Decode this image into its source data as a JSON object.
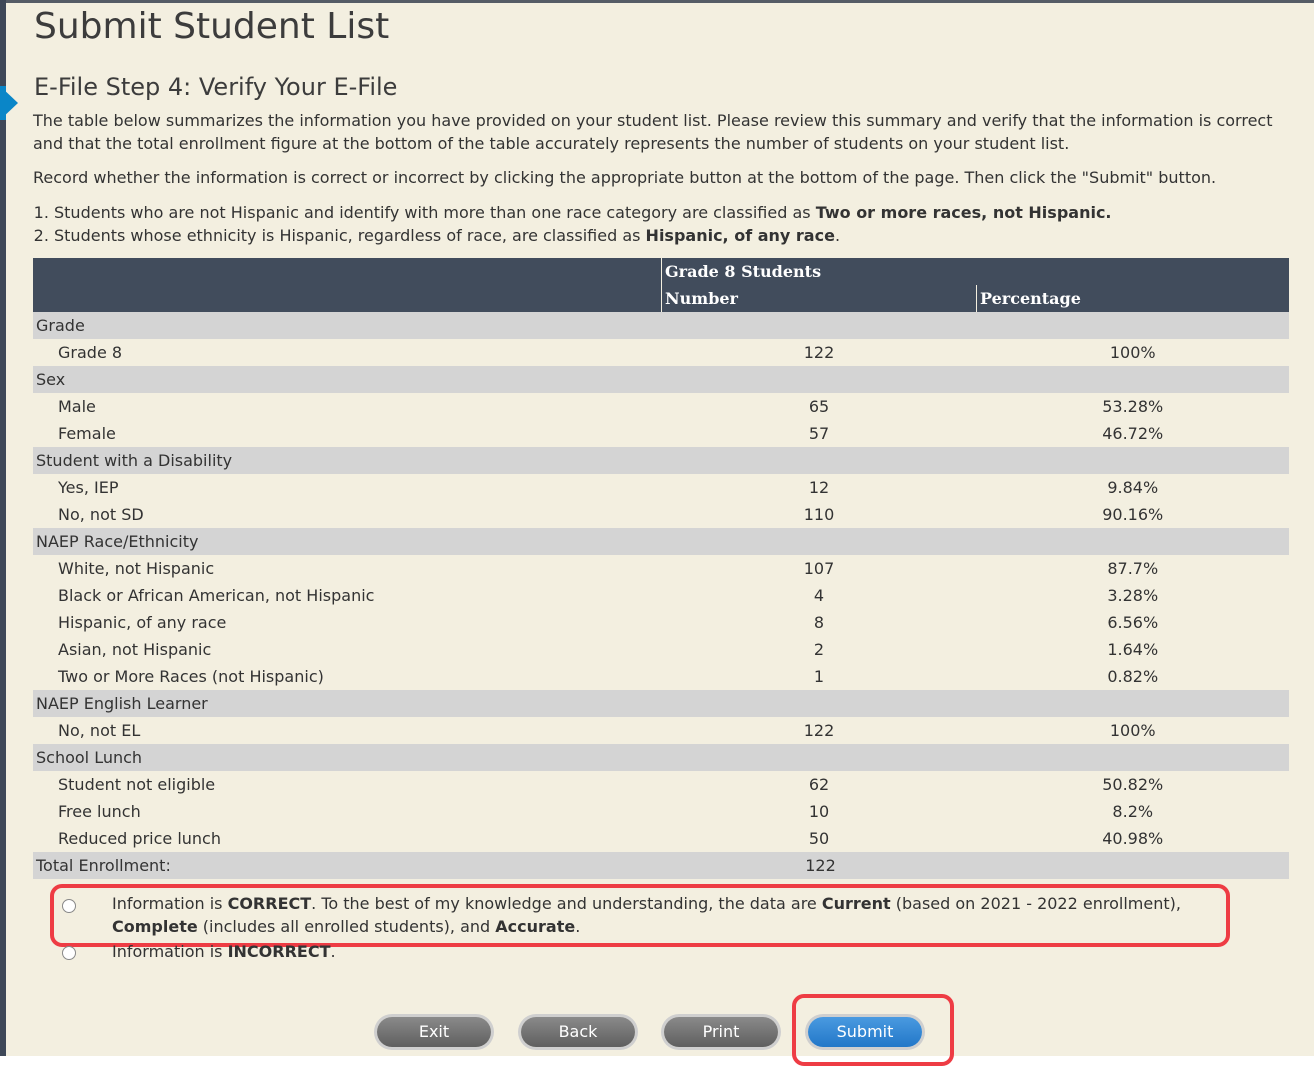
{
  "title": "Submit Student List",
  "step_title": "E-File Step 4: Verify Your E-File",
  "intro": "The table below summarizes the information you have provided on your student list. Please review this summary and verify that the information is correct and that the total enrollment figure at the bottom of the table accurately represents the number of students on your student list.",
  "instruction": "Record whether the information is correct or incorrect by clicking the appropriate button at the bottom of the page. Then click the \"Submit\" button.",
  "notes": [
    {
      "text": "Students who are not Hispanic and identify with more than one race category are classified as ",
      "bold": "Two or more races, not Hispanic."
    },
    {
      "text": "Students whose ethnicity is Hispanic, regardless of race, are classified as ",
      "bold": "Hispanic, of any race",
      "after": "."
    }
  ],
  "table": {
    "group_header": "Grade 8 Students",
    "col_number": "Number",
    "col_percentage": "Percentage",
    "sections": [
      {
        "name": "Grade",
        "rows": [
          [
            "Grade 8",
            "122",
            "100%"
          ]
        ]
      },
      {
        "name": "Sex",
        "rows": [
          [
            "Male",
            "65",
            "53.28%"
          ],
          [
            "Female",
            "57",
            "46.72%"
          ]
        ]
      },
      {
        "name": "Student with a Disability",
        "rows": [
          [
            "Yes, IEP",
            "12",
            "9.84%"
          ],
          [
            "No, not SD",
            "110",
            "90.16%"
          ]
        ]
      },
      {
        "name": "NAEP Race/Ethnicity",
        "rows": [
          [
            "White, not Hispanic",
            "107",
            "87.7%"
          ],
          [
            "Black or African American, not Hispanic",
            "4",
            "3.28%"
          ],
          [
            "Hispanic, of any race",
            "8",
            "6.56%"
          ],
          [
            "Asian, not Hispanic",
            "2",
            "1.64%"
          ],
          [
            "Two or More Races (not Hispanic)",
            "1",
            "0.82%"
          ]
        ]
      },
      {
        "name": "NAEP English Learner",
        "rows": [
          [
            "No, not EL",
            "122",
            "100%"
          ]
        ]
      },
      {
        "name": "School Lunch",
        "rows": [
          [
            "Student not eligible",
            "62",
            "50.82%"
          ],
          [
            "Free lunch",
            "10",
            "8.2%"
          ],
          [
            "Reduced price lunch",
            "50",
            "40.98%"
          ]
        ]
      }
    ],
    "total_label": "Total Enrollment:",
    "total_value": "122"
  },
  "options": {
    "correct": {
      "a": "Information is ",
      "b": "CORRECT",
      "c": ". To the best of my knowledge and understanding, the data are ",
      "d": "Current",
      "e": " (based on 2021 - 2022 enrollment), ",
      "f": "Complete",
      "g": " (includes all enrolled students), and ",
      "h": "Accurate",
      "i": "."
    },
    "incorrect": {
      "a": "Information is ",
      "b": "INCORRECT",
      "c": "."
    }
  },
  "buttons": {
    "exit": "Exit",
    "back": "Back",
    "print": "Print",
    "submit": "Submit"
  },
  "colors": {
    "header": "#414c5c",
    "highlight": "#ee3c44",
    "submit": "#2a7fd0"
  }
}
